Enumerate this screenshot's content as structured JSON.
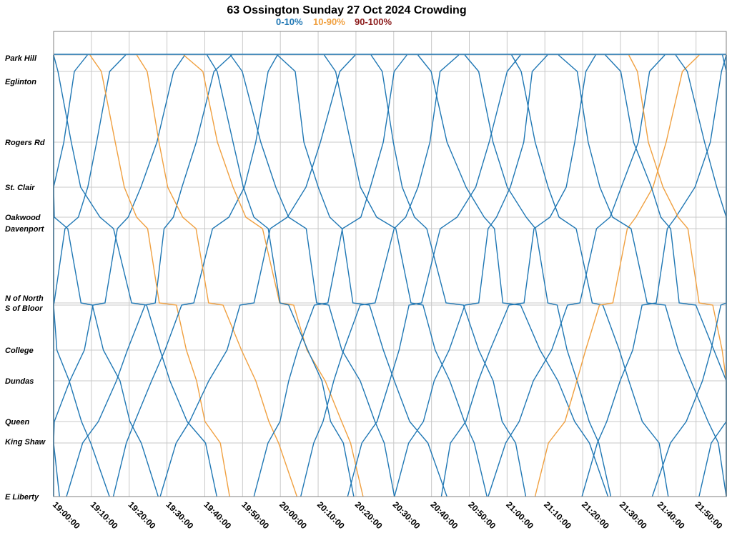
{
  "chart_data": {
    "type": "line",
    "title": "63 Ossington Sunday 27 Oct 2024 Crowding",
    "legend": [
      {
        "label": "0-10%",
        "color": "#1f77b4"
      },
      {
        "label": "10-90%",
        "color": "#f0a040"
      },
      {
        "label": "90-100%",
        "color": "#8b1a1a"
      }
    ],
    "legend_placement": "top-center",
    "grid": true,
    "xlim": [
      "19:00:00",
      "21:58:00"
    ],
    "x_ticks": [
      "19:00:00",
      "19:10:00",
      "19:20:00",
      "19:30:00",
      "19:40:00",
      "19:50:00",
      "20:00:00",
      "20:10:00",
      "20:20:00",
      "20:30:00",
      "20:40:00",
      "20:50:00",
      "21:00:00",
      "21:10:00",
      "21:20:00",
      "21:30:00",
      "21:40:00",
      "21:50:00"
    ],
    "stops": [
      {
        "name": "Park Hill",
        "label": "Park Hill"
      },
      {
        "name": "Eglinton",
        "label": "Eglinton"
      },
      {
        "name": "Rogers Rd",
        "label": "Rogers Rd"
      },
      {
        "name": "St. Clair",
        "label": "St. Clair"
      },
      {
        "name": "Oakwood",
        "label": "Oakwood"
      },
      {
        "name": "Davenport",
        "label": "Davenport"
      },
      {
        "name": "N of North",
        "label": "N of North"
      },
      {
        "name": "S of Bloor",
        "label": "S of Bloor"
      },
      {
        "name": "College",
        "label": "College"
      },
      {
        "name": "Dundas",
        "label": "Dundas"
      },
      {
        "name": "Queen",
        "label": "Queen"
      },
      {
        "name": "King Shaw",
        "label": "King Shaw"
      },
      {
        "name": "E Liberty",
        "label": "E Liberty"
      }
    ],
    "series": [
      {
        "crowding": "0-10%",
        "points": [
          [
            "19:00:00",
            "Park Hill"
          ],
          [
            "19:00:00",
            "Park Hill"
          ],
          [
            "19:00:00",
            "Park Hill"
          ],
          [
            "19:00:00",
            "Park Hill"
          ],
          [
            "19:00:00",
            "Park Hill"
          ],
          [
            "19:00:00",
            "Park Hill"
          ],
          [
            "19:00:00",
            "Park Hill"
          ],
          [
            "19:00:00",
            "Park Hill"
          ],
          [
            "19:00:00",
            "Park Hill"
          ],
          [
            "19:00:00",
            "Park Hill"
          ],
          [
            "19:00:00",
            "Park Hill"
          ],
          [
            "19:00:00",
            "Park Hill"
          ],
          [
            "19:00:00",
            "Park Hill"
          ],
          [
            "19:00:00",
            "Park Hill"
          ],
          [
            "19:00:00",
            "Park Hill"
          ],
          [
            "19:00:00",
            "Park Hill"
          ],
          [
            "19:00:00",
            "Park Hill"
          ],
          [
            "19:00:00",
            "Park Hill"
          ],
          [
            "21:58:00",
            "Park Hill"
          ]
        ]
      }
    ]
  }
}
